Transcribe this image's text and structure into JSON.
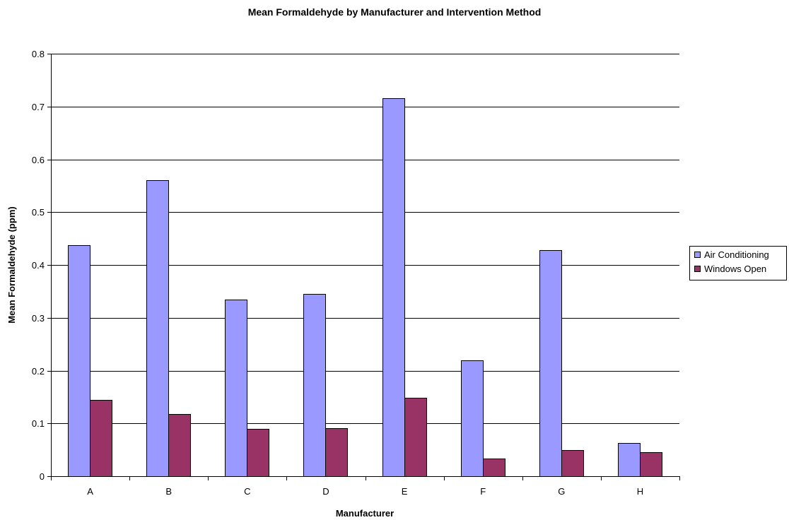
{
  "chart_data": {
    "type": "bar",
    "title": "Mean Formaldehyde by Manufacturer and Intervention Method",
    "xlabel": "Manufacturer",
    "ylabel": "Mean Formaldehyde (ppm)",
    "categories": [
      "A",
      "B",
      "C",
      "D",
      "E",
      "F",
      "G",
      "H"
    ],
    "series": [
      {
        "name": "Air Conditioning",
        "color": "#9999ff",
        "values": [
          0.437,
          0.56,
          0.334,
          0.345,
          0.716,
          0.22,
          0.428,
          0.063
        ]
      },
      {
        "name": "Windows Open",
        "color": "#993366",
        "values": [
          0.144,
          0.118,
          0.089,
          0.091,
          0.148,
          0.033,
          0.049,
          0.046
        ]
      }
    ],
    "ylim": [
      0,
      0.8
    ],
    "yticks": [
      "0",
      "0.1",
      "0.2",
      "0.3",
      "0.4",
      "0.5",
      "0.6",
      "0.7",
      "0.8"
    ],
    "grid": true,
    "legend": "right"
  }
}
